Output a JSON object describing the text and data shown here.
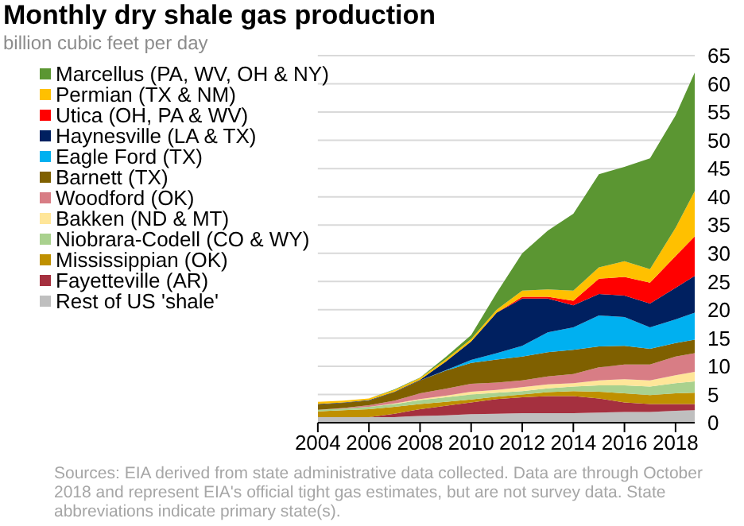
{
  "chart_data": {
    "type": "area",
    "title": "Monthly dry shale gas production",
    "subtitle": "billion cubic feet per day",
    "stacked": true,
    "x": [
      2004,
      2005,
      2006,
      2007,
      2008,
      2009,
      2010,
      2011,
      2012,
      2013,
      2014,
      2015,
      2016,
      2017,
      2018,
      2018.75
    ],
    "xlim": [
      2004,
      2018.75
    ],
    "xticks": [
      2004,
      2006,
      2008,
      2010,
      2012,
      2014,
      2016,
      2018
    ],
    "ylim": [
      0,
      65
    ],
    "yticks": [
      0,
      5,
      10,
      15,
      20,
      25,
      30,
      35,
      40,
      45,
      50,
      55,
      60,
      65
    ],
    "grid": "y",
    "legend": "top left",
    "series": [
      {
        "name": "Rest of US 'shale'",
        "color": "#bfbfbf",
        "values": [
          1.0,
          1.0,
          1.0,
          1.0,
          1.2,
          1.3,
          1.5,
          1.6,
          1.7,
          1.7,
          1.7,
          1.8,
          1.9,
          1.9,
          2.1,
          2.2
        ]
      },
      {
        "name": "Fayetteville (AR)",
        "color": "#a5303f",
        "values": [
          0,
          0,
          0,
          0.6,
          1.2,
          1.7,
          2.1,
          2.6,
          2.8,
          3.0,
          3.0,
          2.5,
          1.7,
          1.4,
          1.2,
          1.1
        ]
      },
      {
        "name": "Mississippian (OK)",
        "color": "#bf9000",
        "values": [
          1.0,
          1.2,
          1.4,
          1.2,
          0.9,
          0.7,
          0.5,
          0.4,
          0.5,
          0.7,
          0.9,
          1.2,
          1.6,
          1.6,
          1.9,
          2.0
        ]
      },
      {
        "name": "Niobrara-Codell (CO & WY)",
        "color": "#a9d18e",
        "values": [
          0.3,
          0.3,
          0.4,
          0.5,
          0.7,
          0.8,
          0.9,
          0.7,
          0.6,
          0.7,
          0.8,
          1.1,
          1.4,
          1.5,
          1.8,
          2.0
        ]
      },
      {
        "name": "Bakken (ND & MT)",
        "color": "#ffe699",
        "values": [
          0,
          0,
          0,
          0.1,
          0.2,
          0.3,
          0.5,
          0.5,
          0.7,
          0.7,
          0.6,
          0.9,
          1.1,
          1.1,
          1.4,
          1.7
        ]
      },
      {
        "name": "Woodford (OK)",
        "color": "#d87d85",
        "values": [
          0,
          0.1,
          0.3,
          0.5,
          1.0,
          1.2,
          1.4,
          1.3,
          1.2,
          1.4,
          1.6,
          2.3,
          2.6,
          2.8,
          3.3,
          3.3
        ]
      },
      {
        "name": "Barnett (TX)",
        "color": "#7f6000",
        "values": [
          0.9,
          0.9,
          0.8,
          1.5,
          2.3,
          3.2,
          3.7,
          4.1,
          4.2,
          4.3,
          4.3,
          3.7,
          3.3,
          2.8,
          2.4,
          2.4
        ]
      },
      {
        "name": "Eagle Ford (TX)",
        "color": "#00b0f0",
        "values": [
          0,
          0,
          0,
          0,
          0,
          0.1,
          0.5,
          1.1,
          1.9,
          3.5,
          4.0,
          5.5,
          5.1,
          3.8,
          4.2,
          4.8
        ]
      },
      {
        "name": "Haynesville (LA & TX)",
        "color": "#002060",
        "values": [
          0.1,
          0.1,
          0.1,
          0.1,
          0.1,
          1.5,
          3.3,
          7.2,
          8.4,
          6.0,
          3.9,
          3.8,
          3.8,
          4.2,
          5.6,
          6.5
        ]
      },
      {
        "name": "Utica (OH, PA & WV)",
        "color": "#ff0000",
        "values": [
          0,
          0,
          0,
          0,
          0,
          0,
          0,
          0,
          0.3,
          0.3,
          0.8,
          2.7,
          3.3,
          3.7,
          5.6,
          7.0
        ]
      },
      {
        "name": "Permian (TX & NM)",
        "color": "#ffc000",
        "values": [
          0.4,
          0.3,
          0.3,
          0.3,
          0.3,
          0.4,
          0.4,
          0.5,
          1.1,
          1.3,
          1.8,
          2.0,
          2.8,
          2.4,
          5.0,
          8.0
        ]
      },
      {
        "name": "Marcellus (PA, WV, OH & NY)",
        "color": "#5b9632",
        "values": [
          0,
          0,
          0,
          0.1,
          0.1,
          0.4,
          0.7,
          3.0,
          6.6,
          10.4,
          13.6,
          16.5,
          16.7,
          19.6,
          19.9,
          21.0
        ]
      }
    ],
    "annotations": [
      "Sources: EIA derived from state administrative data collected. Data are through October 2018 and represent EIA's official tight gas estimates, but are not survey data. State abbreviations indicate primary state(s)."
    ]
  }
}
